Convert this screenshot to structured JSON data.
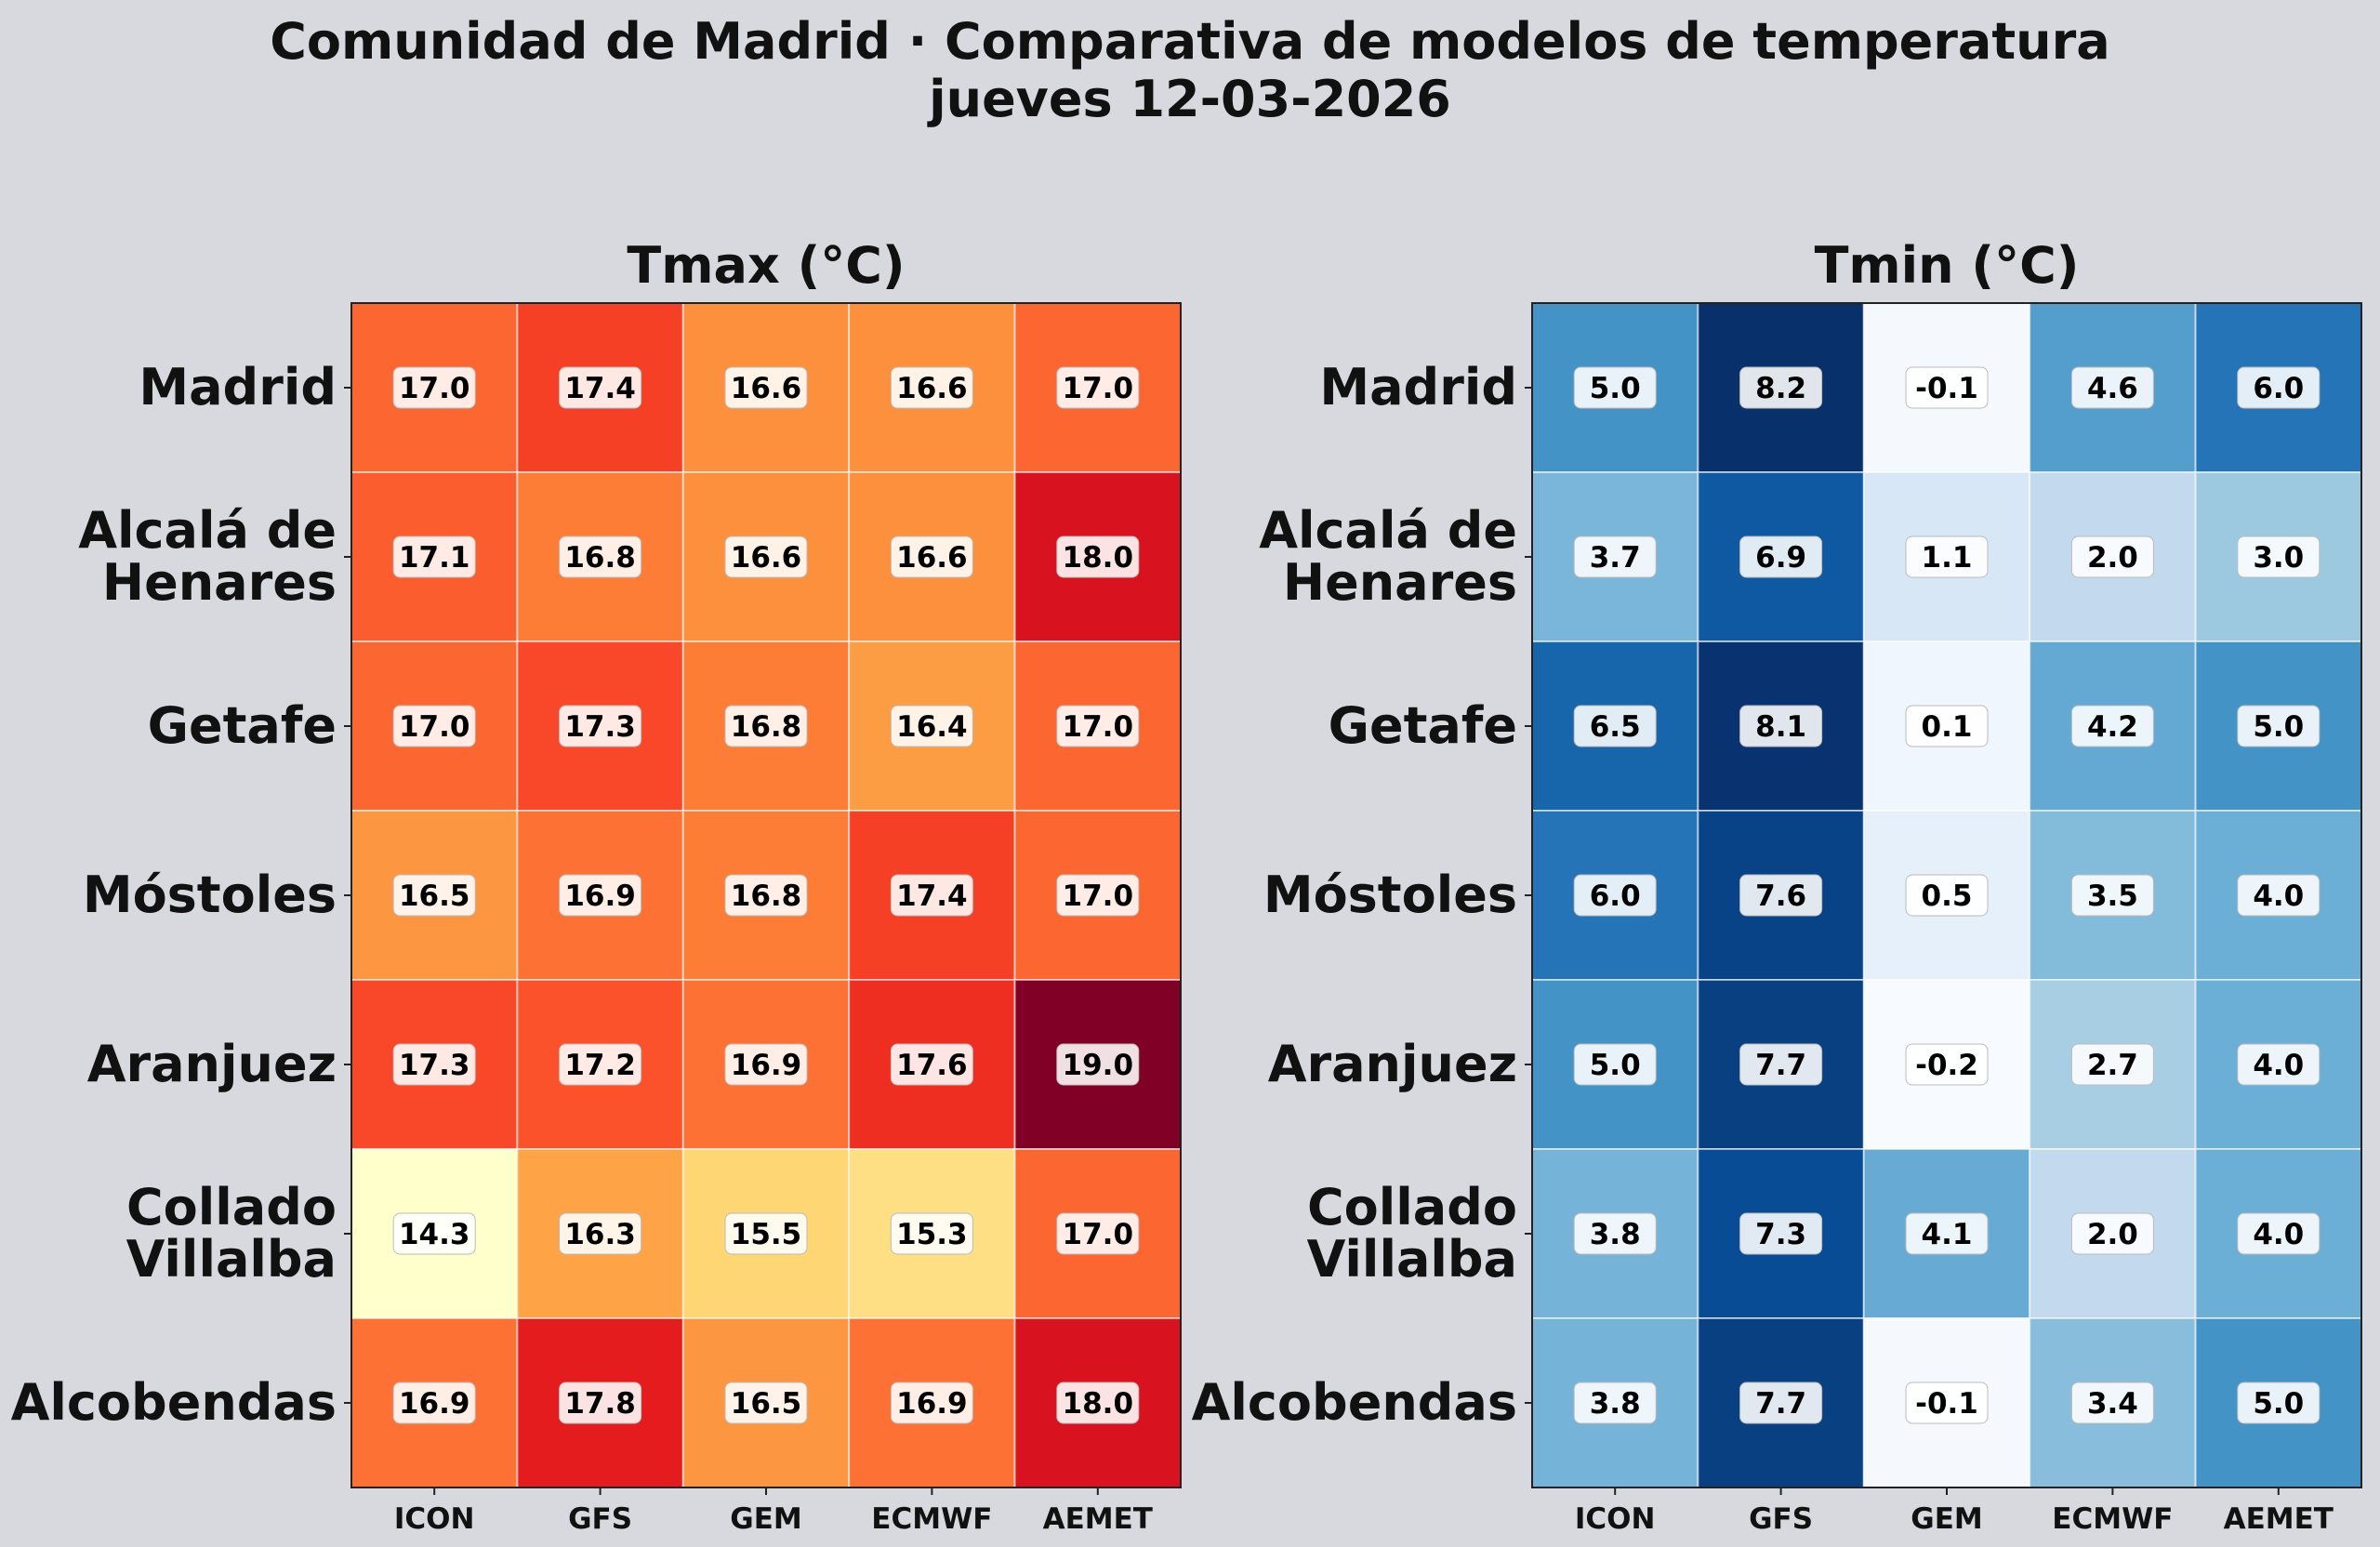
{
  "title": "Comunidad de Madrid · Comparativa de modelos de temperatura",
  "subtitle": "jueves 12-03-2026",
  "chart_data": [
    {
      "type": "heatmap",
      "title": "Tmax (°C)",
      "colormap": "YlOrRd",
      "vmin": 14.3,
      "vmax": 19.0,
      "columns": [
        "ICON",
        "GFS",
        "GEM",
        "ECMWF",
        "AEMET"
      ],
      "rows": [
        "Madrid",
        "Alcalá de Henares",
        "Getafe",
        "Móstoles",
        "Aranjuez",
        "Collado Villalba",
        "Alcobendas"
      ],
      "values": [
        [
          17.0,
          17.4,
          16.6,
          16.6,
          17.0
        ],
        [
          17.1,
          16.8,
          16.6,
          16.6,
          18.0
        ],
        [
          17.0,
          17.3,
          16.8,
          16.4,
          17.0
        ],
        [
          16.5,
          16.9,
          16.8,
          17.4,
          17.0
        ],
        [
          17.3,
          17.2,
          16.9,
          17.6,
          19.0
        ],
        [
          14.3,
          16.3,
          15.5,
          15.3,
          17.0
        ],
        [
          16.9,
          17.8,
          16.5,
          16.9,
          18.0
        ]
      ]
    },
    {
      "type": "heatmap",
      "title": "Tmin (°C)",
      "colormap": "Blues",
      "vmin": -0.2,
      "vmax": 8.2,
      "columns": [
        "ICON",
        "GFS",
        "GEM",
        "ECMWF",
        "AEMET"
      ],
      "rows": [
        "Madrid",
        "Alcalá de Henares",
        "Getafe",
        "Móstoles",
        "Aranjuez",
        "Collado Villalba",
        "Alcobendas"
      ],
      "values": [
        [
          5.0,
          8.2,
          -0.1,
          4.6,
          6.0
        ],
        [
          3.7,
          6.9,
          1.1,
          2.0,
          3.0
        ],
        [
          6.5,
          8.1,
          0.1,
          4.2,
          5.0
        ],
        [
          6.0,
          7.6,
          0.5,
          3.5,
          4.0
        ],
        [
          5.0,
          7.7,
          -0.2,
          2.7,
          4.0
        ],
        [
          3.8,
          7.3,
          4.1,
          2.0,
          4.0
        ],
        [
          3.8,
          7.7,
          -0.1,
          3.4,
          5.0
        ]
      ]
    }
  ]
}
